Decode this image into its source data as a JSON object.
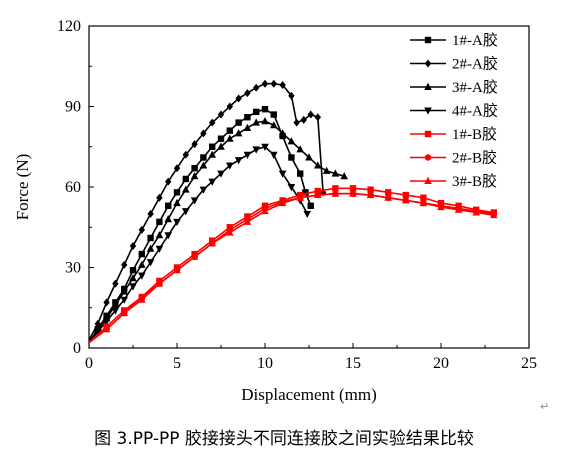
{
  "chart_data": {
    "type": "line",
    "title": "",
    "xlabel": "Displacement (mm)",
    "ylabel": "Force (N)",
    "xlim": [
      0,
      25
    ],
    "ylim": [
      0,
      120
    ],
    "xticks": [
      0,
      5,
      10,
      15,
      20,
      25
    ],
    "yticks": [
      0,
      30,
      60,
      90,
      120
    ],
    "grid": false,
    "legend_position": "top-right",
    "series": [
      {
        "name": "1#-A胶",
        "color": "#000000",
        "marker": "square",
        "x": [
          0,
          0.5,
          1,
          1.5,
          2,
          2.5,
          3,
          3.5,
          4,
          4.5,
          5,
          5.5,
          6,
          6.5,
          7,
          7.5,
          8,
          8.5,
          9,
          9.5,
          10,
          10.5,
          11,
          11.5,
          12,
          12.3,
          12.6
        ],
        "y": [
          2,
          7,
          12,
          17,
          22,
          29,
          35,
          41,
          47,
          53,
          58,
          63,
          67,
          71,
          75,
          78,
          81,
          84,
          86,
          88,
          89,
          87,
          79,
          71,
          65,
          58,
          53
        ]
      },
      {
        "name": "2#-A胶",
        "color": "#000000",
        "marker": "diamond",
        "x": [
          0,
          0.5,
          1,
          1.5,
          2,
          2.5,
          3,
          3.5,
          4,
          4.5,
          5,
          5.5,
          6,
          6.5,
          7,
          7.5,
          8,
          8.5,
          9,
          9.5,
          10,
          10.5,
          11,
          11.5,
          11.8,
          12.2,
          12.6,
          13,
          13.3
        ],
        "y": [
          3,
          9,
          17,
          24,
          31,
          38,
          44,
          50,
          56,
          62,
          67,
          72,
          76,
          80,
          84,
          87,
          90,
          93,
          95,
          97,
          98.5,
          98.5,
          98,
          94,
          84,
          85,
          87,
          86,
          58
        ]
      },
      {
        "name": "3#-A胶",
        "color": "#000000",
        "marker": "triangle-up",
        "x": [
          0,
          0.5,
          1,
          1.5,
          2,
          2.5,
          3,
          3.5,
          4,
          4.5,
          5,
          5.5,
          6,
          6.5,
          7,
          7.5,
          8,
          8.5,
          9,
          9.5,
          10,
          10.5,
          11,
          11.5,
          12,
          12.5,
          13,
          13.5,
          14,
          14.5
        ],
        "y": [
          2,
          7,
          11,
          16,
          21,
          26,
          31,
          37,
          42,
          48,
          54,
          59,
          64,
          68,
          72,
          75,
          78,
          80,
          82,
          84,
          84.5,
          83,
          80,
          77,
          74,
          71,
          68,
          66,
          65,
          64
        ]
      },
      {
        "name": "4#-A胶",
        "color": "#000000",
        "marker": "triangle-down",
        "x": [
          0,
          0.5,
          1,
          1.5,
          2,
          2.5,
          3,
          3.5,
          4,
          4.5,
          5,
          5.5,
          6,
          6.5,
          7,
          7.5,
          8,
          8.5,
          9,
          9.5,
          10,
          10.5,
          11,
          11.5,
          12,
          12.4
        ],
        "y": [
          2,
          6,
          10,
          14,
          18,
          23,
          27,
          32,
          37,
          42,
          47,
          51,
          55,
          59,
          62,
          65,
          68,
          70,
          72,
          74,
          75,
          72,
          65,
          60,
          55,
          50
        ]
      },
      {
        "name": "1#-B胶",
        "color": "#ff0000",
        "marker": "square",
        "x": [
          0,
          1,
          2,
          3,
          4,
          5,
          6,
          7,
          8,
          9,
          10,
          11,
          12,
          13,
          14,
          15,
          16,
          17,
          18,
          19,
          20,
          21,
          22,
          23
        ],
        "y": [
          2,
          8,
          14,
          19,
          25,
          30,
          35,
          40,
          45,
          49,
          53,
          55,
          57,
          58.5,
          59.5,
          59.5,
          59,
          58,
          57,
          56,
          54,
          53,
          51.5,
          50.5
        ]
      },
      {
        "name": "2#-B胶",
        "color": "#ff0000",
        "marker": "circle",
        "x": [
          0,
          1,
          2,
          3,
          4,
          5,
          6,
          7,
          8,
          9,
          10,
          11,
          12,
          13,
          14,
          15,
          16,
          17,
          18,
          19,
          20,
          21,
          22,
          23
        ],
        "y": [
          2,
          7,
          13,
          19,
          24,
          29,
          34,
          39,
          44,
          48,
          52,
          54.5,
          56,
          57,
          57.5,
          57.5,
          57,
          56,
          55,
          54,
          53,
          52,
          51,
          50
        ]
      },
      {
        "name": "3#-B胶",
        "color": "#ff0000",
        "marker": "triangle-up",
        "x": [
          0,
          1,
          2,
          3,
          4,
          5,
          6,
          7,
          8,
          9,
          10,
          11,
          12,
          13,
          14,
          15,
          16,
          17,
          18,
          19,
          20,
          21,
          22,
          23
        ],
        "y": [
          2,
          7,
          13,
          18,
          24,
          29,
          34,
          39,
          43,
          47,
          51,
          54,
          56,
          57,
          57.5,
          57.5,
          57,
          56,
          55,
          54,
          52.5,
          51.5,
          50.5,
          49.5
        ]
      }
    ]
  },
  "caption": {
    "text": "图 3.PP-PP 胶接接头不同连接胶之间实验结果比较",
    "mark": "↵"
  }
}
